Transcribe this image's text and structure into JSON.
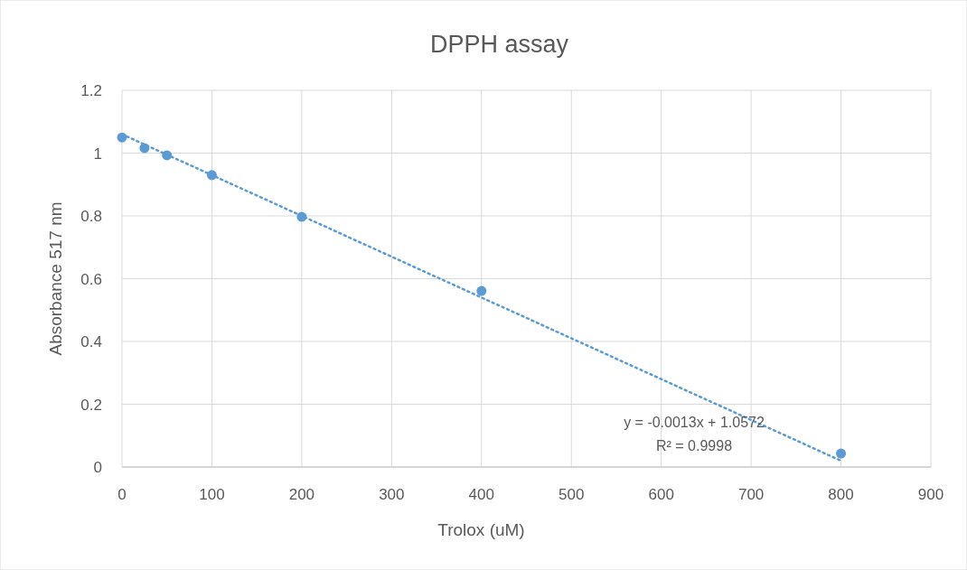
{
  "chart_data": {
    "type": "scatter",
    "title": "DPPH assay",
    "xlabel": "Trolox (uM)",
    "ylabel": "Absorbance 517 nm",
    "x": [
      0,
      25,
      50,
      100,
      200,
      400,
      800
    ],
    "series": [
      {
        "color": "#5b9bd5",
        "values": [
          1.05,
          1.016,
          0.993,
          0.93,
          0.797,
          0.561,
          0.043
        ],
        "marker": "circle"
      },
      {
        "type": "line",
        "color": "#5b9bd5",
        "x": [
          0,
          800
        ],
        "values": [
          1.06,
          0.02
        ],
        "line_style": "dotted",
        "marker": "none"
      }
    ],
    "annotations": [
      "y = -0.0013x + 1.0572",
      "R² = 0.9998"
    ],
    "xlim": [
      0,
      900
    ],
    "xticks": [
      0,
      100,
      200,
      300,
      400,
      500,
      600,
      700,
      800,
      900
    ],
    "ylim": [
      0,
      1.2
    ],
    "yticks": [
      0,
      0.2,
      0.4,
      0.6,
      0.8,
      1,
      1.2
    ],
    "grid": true
  }
}
